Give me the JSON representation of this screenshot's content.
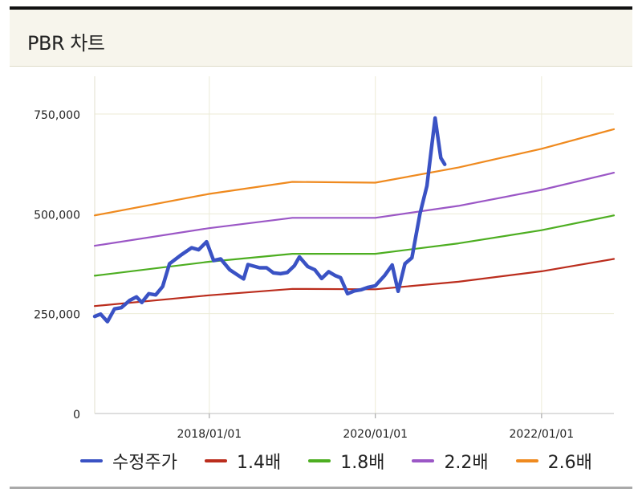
{
  "title": "PBR 차트",
  "chart_data": {
    "type": "line",
    "title": "PBR 차트",
    "xlabel": "",
    "ylabel": "",
    "x_range": [
      "2016-08-15",
      "2022-11-15"
    ],
    "ylim": [
      0,
      750000
    ],
    "y_ticks": [
      0,
      250000,
      500000,
      750000
    ],
    "y_tick_labels": [
      "0",
      "250,000",
      "500,000",
      "750,000"
    ],
    "x_ticks": [
      "2018-01-01",
      "2020-01-01",
      "2022-01-01"
    ],
    "x_tick_labels": [
      "2018/01/01",
      "2020/01/01",
      "2022/01/01"
    ],
    "grid": true,
    "legend_position": "bottom",
    "series": [
      {
        "name": "수정주가",
        "color": "#3a52c4",
        "width": 4.5,
        "points": [
          [
            "2016-08-15",
            243000
          ],
          [
            "2016-09-10",
            249000
          ],
          [
            "2016-10-10",
            230000
          ],
          [
            "2016-11-10",
            262000
          ],
          [
            "2016-12-10",
            265000
          ],
          [
            "2017-01-15",
            283000
          ],
          [
            "2017-02-15",
            292000
          ],
          [
            "2017-03-10",
            278000
          ],
          [
            "2017-04-10",
            300000
          ],
          [
            "2017-05-10",
            297000
          ],
          [
            "2017-06-10",
            318000
          ],
          [
            "2017-07-10",
            375000
          ],
          [
            "2017-09-01",
            398000
          ],
          [
            "2017-10-15",
            415000
          ],
          [
            "2017-11-15",
            410000
          ],
          [
            "2017-12-20",
            430000
          ],
          [
            "2018-01-20",
            383000
          ],
          [
            "2018-02-20",
            387000
          ],
          [
            "2018-04-01",
            360000
          ],
          [
            "2018-05-10",
            345000
          ],
          [
            "2018-06-01",
            337000
          ],
          [
            "2018-06-20",
            373000
          ],
          [
            "2018-08-10",
            365000
          ],
          [
            "2018-09-10",
            365000
          ],
          [
            "2018-10-10",
            352000
          ],
          [
            "2018-11-10",
            350000
          ],
          [
            "2018-12-10",
            353000
          ],
          [
            "2019-01-10",
            370000
          ],
          [
            "2019-02-01",
            392000
          ],
          [
            "2019-03-10",
            368000
          ],
          [
            "2019-04-10",
            360000
          ],
          [
            "2019-05-10",
            338000
          ],
          [
            "2019-06-10",
            355000
          ],
          [
            "2019-07-10",
            345000
          ],
          [
            "2019-08-01",
            340000
          ],
          [
            "2019-09-01",
            300000
          ],
          [
            "2019-10-01",
            307000
          ],
          [
            "2019-11-01",
            310000
          ],
          [
            "2019-12-01",
            316000
          ],
          [
            "2020-01-01",
            320000
          ],
          [
            "2020-02-10",
            345000
          ],
          [
            "2020-03-15",
            372000
          ],
          [
            "2020-04-10",
            306000
          ],
          [
            "2020-05-10",
            375000
          ],
          [
            "2020-06-10",
            390000
          ],
          [
            "2020-07-15",
            500000
          ],
          [
            "2020-08-15",
            570000
          ],
          [
            "2020-09-20",
            740000
          ],
          [
            "2020-10-15",
            640000
          ],
          [
            "2020-11-01",
            624000
          ]
        ]
      },
      {
        "name": "1.4배",
        "color": "#bb2d1d",
        "width": 2.2,
        "points": [
          [
            "2016-08-15",
            269000
          ],
          [
            "2017-12-31",
            296000
          ],
          [
            "2019-01-01",
            312000
          ],
          [
            "2020-01-01",
            311000
          ],
          [
            "2021-01-01",
            330000
          ],
          [
            "2022-01-01",
            356000
          ],
          [
            "2022-11-15",
            387000
          ]
        ]
      },
      {
        "name": "1.8배",
        "color": "#4dae21",
        "width": 2.2,
        "points": [
          [
            "2016-08-15",
            345000
          ],
          [
            "2017-12-31",
            380000
          ],
          [
            "2019-01-01",
            400000
          ],
          [
            "2020-01-01",
            400000
          ],
          [
            "2021-01-01",
            426000
          ],
          [
            "2022-01-01",
            459000
          ],
          [
            "2022-11-15",
            496000
          ]
        ]
      },
      {
        "name": "2.2배",
        "color": "#9b57c6",
        "width": 2.2,
        "points": [
          [
            "2016-08-15",
            420000
          ],
          [
            "2017-12-31",
            464000
          ],
          [
            "2019-01-01",
            490000
          ],
          [
            "2020-01-01",
            490000
          ],
          [
            "2021-01-01",
            520000
          ],
          [
            "2022-01-01",
            560000
          ],
          [
            "2022-11-15",
            603000
          ]
        ]
      },
      {
        "name": "2.6배",
        "color": "#ef8a1f",
        "width": 2.2,
        "points": [
          [
            "2016-08-15",
            496000
          ],
          [
            "2017-12-31",
            550000
          ],
          [
            "2019-01-01",
            580000
          ],
          [
            "2020-01-01",
            578000
          ],
          [
            "2021-01-01",
            616000
          ],
          [
            "2022-01-01",
            663000
          ],
          [
            "2022-11-15",
            712000
          ]
        ]
      }
    ]
  }
}
